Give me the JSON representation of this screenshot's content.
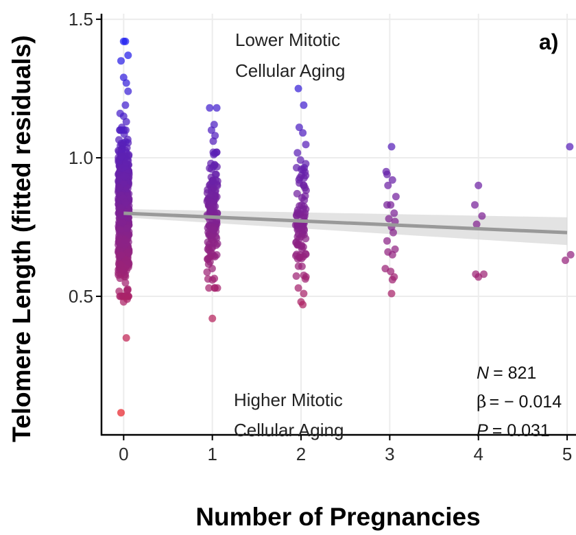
{
  "chart_data": {
    "type": "scatter",
    "panel_label": "a)",
    "xlabel": "Number of Pregnancies",
    "ylabel": "Telomere Length (fitted residuals)",
    "xlim": [
      -0.25,
      5.1
    ],
    "ylim": [
      0.0,
      1.52
    ],
    "x_ticks": [
      0,
      1,
      2,
      3,
      4,
      5
    ],
    "x_tick_labels": [
      "0",
      "1",
      "2",
      "3",
      "4",
      "5"
    ],
    "y_ticks": [
      0.5,
      1.0,
      1.5
    ],
    "y_tick_labels": [
      "0.5",
      "1.0",
      "1.5"
    ],
    "grid": true,
    "annotations": {
      "top_line1": "Lower Mitotic",
      "top_line2": "Cellular Aging",
      "bottom_line1": "Higher Mitotic",
      "bottom_line2": "Cellular Aging"
    },
    "stats": {
      "n_label": "N",
      "n_value": "= 821",
      "beta_label": "β",
      "beta_value": "= − 0.014",
      "p_label": "P",
      "p_value": "= 0.031"
    },
    "color_scale": {
      "low": "#e8242b",
      "high": "#1f1ff0",
      "low_value": 0.08,
      "high_value": 1.42
    },
    "regression": {
      "x": [
        0,
        5
      ],
      "y": [
        0.8,
        0.73
      ],
      "ci_lower": [
        0.785,
        0.685
      ],
      "ci_upper": [
        0.815,
        0.785
      ],
      "color": "#999999",
      "band_color": "#d9d9d9"
    },
    "groups": [
      {
        "x": 0,
        "n": 600,
        "dist": {
          "mean": 0.8,
          "sd": 0.13,
          "min": 0.5,
          "max": 1.1
        },
        "extra_points": [
          [
            0.0,
            1.42
          ],
          [
            0.02,
            1.42
          ],
          [
            -0.03,
            1.35
          ],
          [
            0.05,
            1.37
          ],
          [
            0.0,
            1.29
          ],
          [
            0.03,
            1.27
          ],
          [
            0.05,
            1.24
          ],
          [
            0.02,
            1.19
          ],
          [
            -0.04,
            1.16
          ],
          [
            0.0,
            1.15
          ],
          [
            0.03,
            1.13
          ],
          [
            -0.02,
            1.11
          ],
          [
            0.04,
            0.49
          ],
          [
            0.0,
            0.48
          ],
          [
            0.03,
            0.35
          ],
          [
            -0.03,
            0.08
          ]
        ]
      },
      {
        "x": 1,
        "n": 140,
        "dist": {
          "mean": 0.79,
          "sd": 0.11,
          "min": 0.53,
          "max": 1.02
        },
        "extra_points": [
          [
            0.97,
            1.18
          ],
          [
            1.05,
            1.18
          ],
          [
            1.02,
            1.12
          ],
          [
            0.99,
            1.1
          ],
          [
            1.03,
            1.08
          ],
          [
            1.01,
            1.06
          ],
          [
            1.0,
            0.42
          ]
        ]
      },
      {
        "x": 2,
        "n": 90,
        "dist": {
          "mean": 0.78,
          "sd": 0.11,
          "min": 0.55,
          "max": 1.05
        },
        "extra_points": [
          [
            1.97,
            1.25
          ],
          [
            2.03,
            1.19
          ],
          [
            1.98,
            1.11
          ],
          [
            2.02,
            1.09
          ],
          [
            1.97,
            0.53
          ],
          [
            2.03,
            0.51
          ],
          [
            2.0,
            0.48
          ],
          [
            2.02,
            0.47
          ]
        ]
      },
      {
        "x": 3,
        "n": 0,
        "dist": null,
        "extra_points": [
          [
            3.02,
            1.04
          ],
          [
            2.96,
            0.95
          ],
          [
            2.97,
            0.94
          ],
          [
            3.03,
            0.92
          ],
          [
            2.98,
            0.9
          ],
          [
            3.07,
            0.86
          ],
          [
            2.97,
            0.83
          ],
          [
            3.01,
            0.83
          ],
          [
            3.05,
            0.8
          ],
          [
            2.99,
            0.78
          ],
          [
            3.06,
            0.77
          ],
          [
            3.02,
            0.75
          ],
          [
            3.04,
            0.73
          ],
          [
            2.97,
            0.7
          ],
          [
            3.06,
            0.67
          ],
          [
            2.98,
            0.66
          ],
          [
            3.03,
            0.65
          ],
          [
            2.95,
            0.6
          ],
          [
            3.01,
            0.59
          ],
          [
            3.05,
            0.57
          ],
          [
            3.03,
            0.56
          ],
          [
            3.02,
            0.51
          ]
        ]
      },
      {
        "x": 4,
        "n": 0,
        "dist": null,
        "extra_points": [
          [
            4.0,
            0.9
          ],
          [
            3.96,
            0.83
          ],
          [
            4.04,
            0.79
          ],
          [
            3.98,
            0.76
          ],
          [
            3.97,
            0.58
          ],
          [
            4.06,
            0.58
          ],
          [
            4.0,
            0.57
          ]
        ]
      },
      {
        "x": 5,
        "n": 0,
        "dist": null,
        "extra_points": [
          [
            5.03,
            1.04
          ],
          [
            5.04,
            0.65
          ],
          [
            4.98,
            0.63
          ]
        ]
      }
    ]
  }
}
